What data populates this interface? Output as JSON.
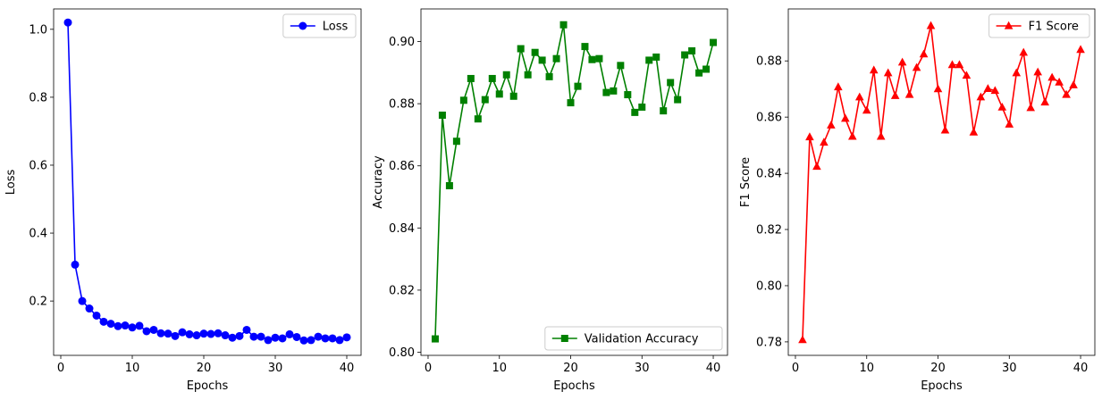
{
  "chart_data": [
    {
      "type": "line",
      "xlabel": "Epochs",
      "ylabel": "Loss",
      "xlim": [
        -1,
        42
      ],
      "ylim": [
        0.04,
        1.06
      ],
      "xticks": [
        0,
        10,
        20,
        30,
        40
      ],
      "yticks": [
        0.2,
        0.4,
        0.6,
        0.8,
        1.0
      ],
      "ytick_format": 1,
      "legend": "top-right",
      "grid": false,
      "series": [
        {
          "name": "Loss",
          "color": "#0000ff",
          "marker": "circle",
          "x": [
            1,
            2,
            3,
            4,
            5,
            6,
            7,
            8,
            9,
            10,
            11,
            12,
            13,
            14,
            15,
            16,
            17,
            18,
            19,
            20,
            21,
            22,
            23,
            24,
            25,
            26,
            27,
            28,
            29,
            30,
            31,
            32,
            33,
            34,
            35,
            36,
            37,
            38,
            39,
            40
          ],
          "values": [
            1.02,
            0.307,
            0.2,
            0.178,
            0.157,
            0.139,
            0.133,
            0.126,
            0.128,
            0.122,
            0.127,
            0.111,
            0.115,
            0.105,
            0.104,
            0.097,
            0.108,
            0.102,
            0.099,
            0.104,
            0.103,
            0.105,
            0.099,
            0.092,
            0.097,
            0.115,
            0.095,
            0.095,
            0.085,
            0.092,
            0.09,
            0.102,
            0.094,
            0.084,
            0.085,
            0.095,
            0.09,
            0.09,
            0.085,
            0.093
          ]
        }
      ]
    },
    {
      "type": "line",
      "xlabel": "Epochs",
      "ylabel": "Accuracy",
      "xlim": [
        -1,
        42
      ],
      "ylim": [
        0.799,
        0.9105
      ],
      "xticks": [
        0,
        10,
        20,
        30,
        40
      ],
      "yticks": [
        0.8,
        0.82,
        0.84,
        0.86,
        0.88,
        0.9
      ],
      "ytick_format": 2,
      "legend": "bottom-right",
      "grid": false,
      "series": [
        {
          "name": "Validation Accuracy",
          "color": "#008000",
          "marker": "square",
          "x": [
            1,
            2,
            3,
            4,
            5,
            6,
            7,
            8,
            9,
            10,
            11,
            12,
            13,
            14,
            15,
            16,
            17,
            18,
            19,
            20,
            21,
            22,
            23,
            24,
            25,
            26,
            27,
            28,
            29,
            30,
            31,
            32,
            33,
            34,
            35,
            36,
            37,
            38,
            39,
            40
          ],
          "values": [
            0.8043,
            0.8763,
            0.8536,
            0.8679,
            0.8811,
            0.8881,
            0.8751,
            0.8813,
            0.8881,
            0.8831,
            0.8893,
            0.8824,
            0.8977,
            0.8893,
            0.8965,
            0.894,
            0.8887,
            0.8945,
            0.9054,
            0.8803,
            0.8856,
            0.8984,
            0.8942,
            0.8945,
            0.8836,
            0.8841,
            0.8923,
            0.8829,
            0.8772,
            0.8789,
            0.894,
            0.895,
            0.8777,
            0.8868,
            0.8813,
            0.8957,
            0.897,
            0.8899,
            0.8911,
            0.8997
          ]
        }
      ]
    },
    {
      "type": "line",
      "xlabel": "Epochs",
      "ylabel": "F1 Score",
      "xlim": [
        -1,
        42
      ],
      "ylim": [
        0.7752,
        0.8985
      ],
      "xticks": [
        0,
        10,
        20,
        30,
        40
      ],
      "yticks": [
        0.78,
        0.8,
        0.82,
        0.84,
        0.86,
        0.88
      ],
      "ytick_format": 2,
      "legend": "top-right",
      "grid": false,
      "series": [
        {
          "name": "F1 Score",
          "color": "#ff0000",
          "marker": "triangle",
          "x": [
            1,
            2,
            3,
            4,
            5,
            6,
            7,
            8,
            9,
            10,
            11,
            12,
            13,
            14,
            15,
            16,
            17,
            18,
            19,
            20,
            21,
            22,
            23,
            24,
            25,
            26,
            27,
            28,
            29,
            30,
            31,
            32,
            33,
            34,
            35,
            36,
            37,
            38,
            39,
            40
          ],
          "values": [
            0.7807,
            0.8529,
            0.8424,
            0.851,
            0.8571,
            0.8707,
            0.8595,
            0.8531,
            0.8671,
            0.8624,
            0.8767,
            0.8531,
            0.8757,
            0.8676,
            0.8795,
            0.868,
            0.8776,
            0.8824,
            0.8925,
            0.87,
            0.8553,
            0.8786,
            0.8786,
            0.8748,
            0.8546,
            0.8671,
            0.8701,
            0.8694,
            0.8635,
            0.8574,
            0.8757,
            0.883,
            0.8633,
            0.876,
            0.8653,
            0.8741,
            0.8724,
            0.868,
            0.8714,
            0.884
          ]
        }
      ]
    }
  ]
}
